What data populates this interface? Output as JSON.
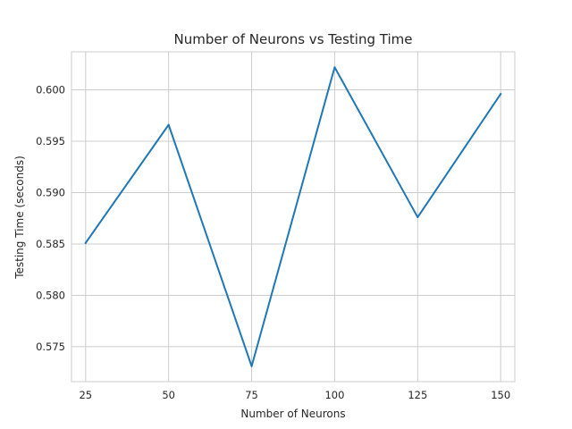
{
  "chart_data": {
    "type": "line",
    "title": "Number of Neurons vs Testing Time",
    "xlabel": "Number of Neurons",
    "ylabel": "Testing Time (seconds)",
    "x": [
      25,
      50,
      75,
      100,
      125,
      150
    ],
    "series": [
      {
        "values": [
          0.5851,
          0.5966,
          0.5731,
          0.6022,
          0.5876,
          0.5996
        ],
        "color": "#1f77b4"
      }
    ],
    "xticks": [
      25,
      50,
      75,
      100,
      125,
      150
    ],
    "xtick_labels": [
      "25",
      "50",
      "75",
      "100",
      "125",
      "150"
    ],
    "yticks": [
      0.575,
      0.58,
      0.585,
      0.59,
      0.595,
      0.6
    ],
    "ytick_labels": [
      "0.575",
      "0.580",
      "0.585",
      "0.590",
      "0.595",
      "0.600"
    ],
    "xlim": [
      20.75,
      154.25
    ],
    "ylim": [
      0.5716,
      0.6037
    ],
    "grid": true,
    "style": {
      "grid_color": "#cccccc",
      "spine_color": "#cccccc",
      "background": "#ffffff"
    }
  }
}
